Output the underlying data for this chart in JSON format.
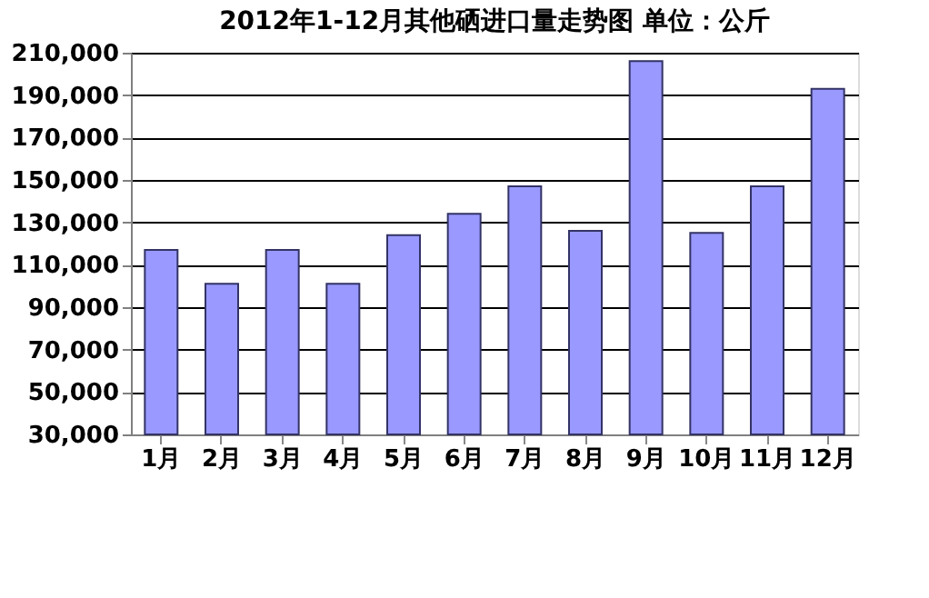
{
  "chart_data": {
    "type": "bar",
    "title": "2012年1-12月其他硒进口量走势图 单位：公斤",
    "categories": [
      "1月",
      "2月",
      "3月",
      "4月",
      "5月",
      "6月",
      "7月",
      "8月",
      "9月",
      "10月",
      "11月",
      "12月"
    ],
    "values": [
      117000,
      101000,
      117000,
      101000,
      124000,
      134000,
      147000,
      126000,
      206000,
      125000,
      147000,
      193000
    ],
    "color": "#9999ff",
    "ylim": [
      30000,
      210000
    ],
    "yticks": [
      {
        "value": 30000,
        "label": "30,000"
      },
      {
        "value": 50000,
        "label": "50,000"
      },
      {
        "value": 70000,
        "label": "70,000"
      },
      {
        "value": 90000,
        "label": "90,000"
      },
      {
        "value": 110000,
        "label": "110,000"
      },
      {
        "value": 130000,
        "label": "130,000"
      },
      {
        "value": 150000,
        "label": "150,000"
      },
      {
        "value": 170000,
        "label": "170,000"
      },
      {
        "value": 190000,
        "label": "190,000"
      },
      {
        "value": 210000,
        "label": "210,000"
      }
    ],
    "grid": "y"
  }
}
